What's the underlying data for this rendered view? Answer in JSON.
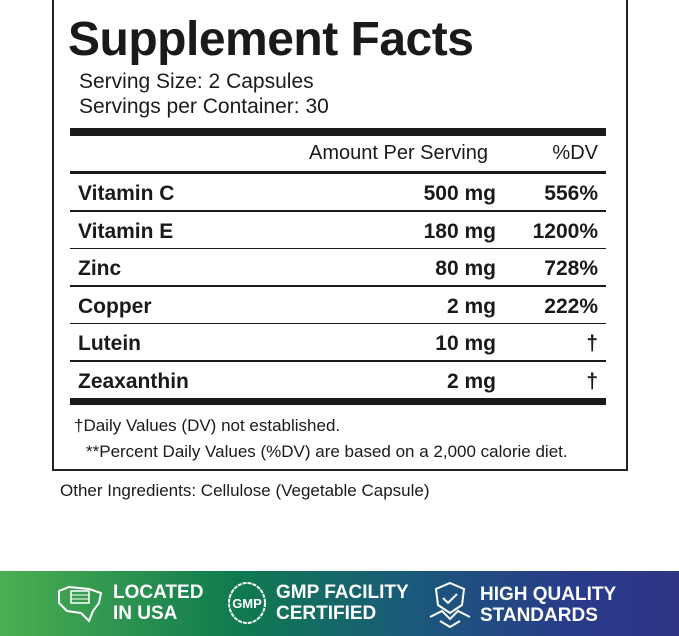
{
  "title": "Supplement Facts",
  "serving_size": "Serving Size: 2 Capsules",
  "servings_per_container": "Servings per Container: 30",
  "header": {
    "amount": "Amount Per Serving",
    "dv": "%DV"
  },
  "rows": [
    {
      "name": "Vitamin C",
      "amount": "500 mg",
      "dv": "556%"
    },
    {
      "name": "Vitamin E",
      "amount": "180 mg",
      "dv": "1200%"
    },
    {
      "name": "Zinc",
      "amount": "80 mg",
      "dv": "728%"
    },
    {
      "name": "Copper",
      "amount": "2 mg",
      "dv": "222%"
    },
    {
      "name": "Lutein",
      "amount": "10 mg",
      "dv": "†"
    },
    {
      "name": "Zeaxanthin",
      "amount": "2 mg",
      "dv": "†"
    }
  ],
  "footnote1": "†Daily Values (DV) not established.",
  "footnote2": "**Percent Daily Values (%DV) are based on a 2,000 calorie diet.",
  "other_ingredients": "Other Ingredients: Cellulose (Vegetable Capsule)",
  "banner": {
    "colors": [
      "#4caf50",
      "#0f7a4f",
      "#2e3585"
    ],
    "badges": [
      {
        "icon": "usa-map-flag-icon",
        "line1": "LOCATED",
        "line2": "IN USA"
      },
      {
        "icon": "gmp-seal-icon",
        "icon_text": "GMP",
        "line1": "GMP FACILITY",
        "line2": "CERTIFIED"
      },
      {
        "icon": "shield-handshake-icon",
        "line1": "HIGH QUALITY",
        "line2": "STANDARDS"
      }
    ]
  }
}
